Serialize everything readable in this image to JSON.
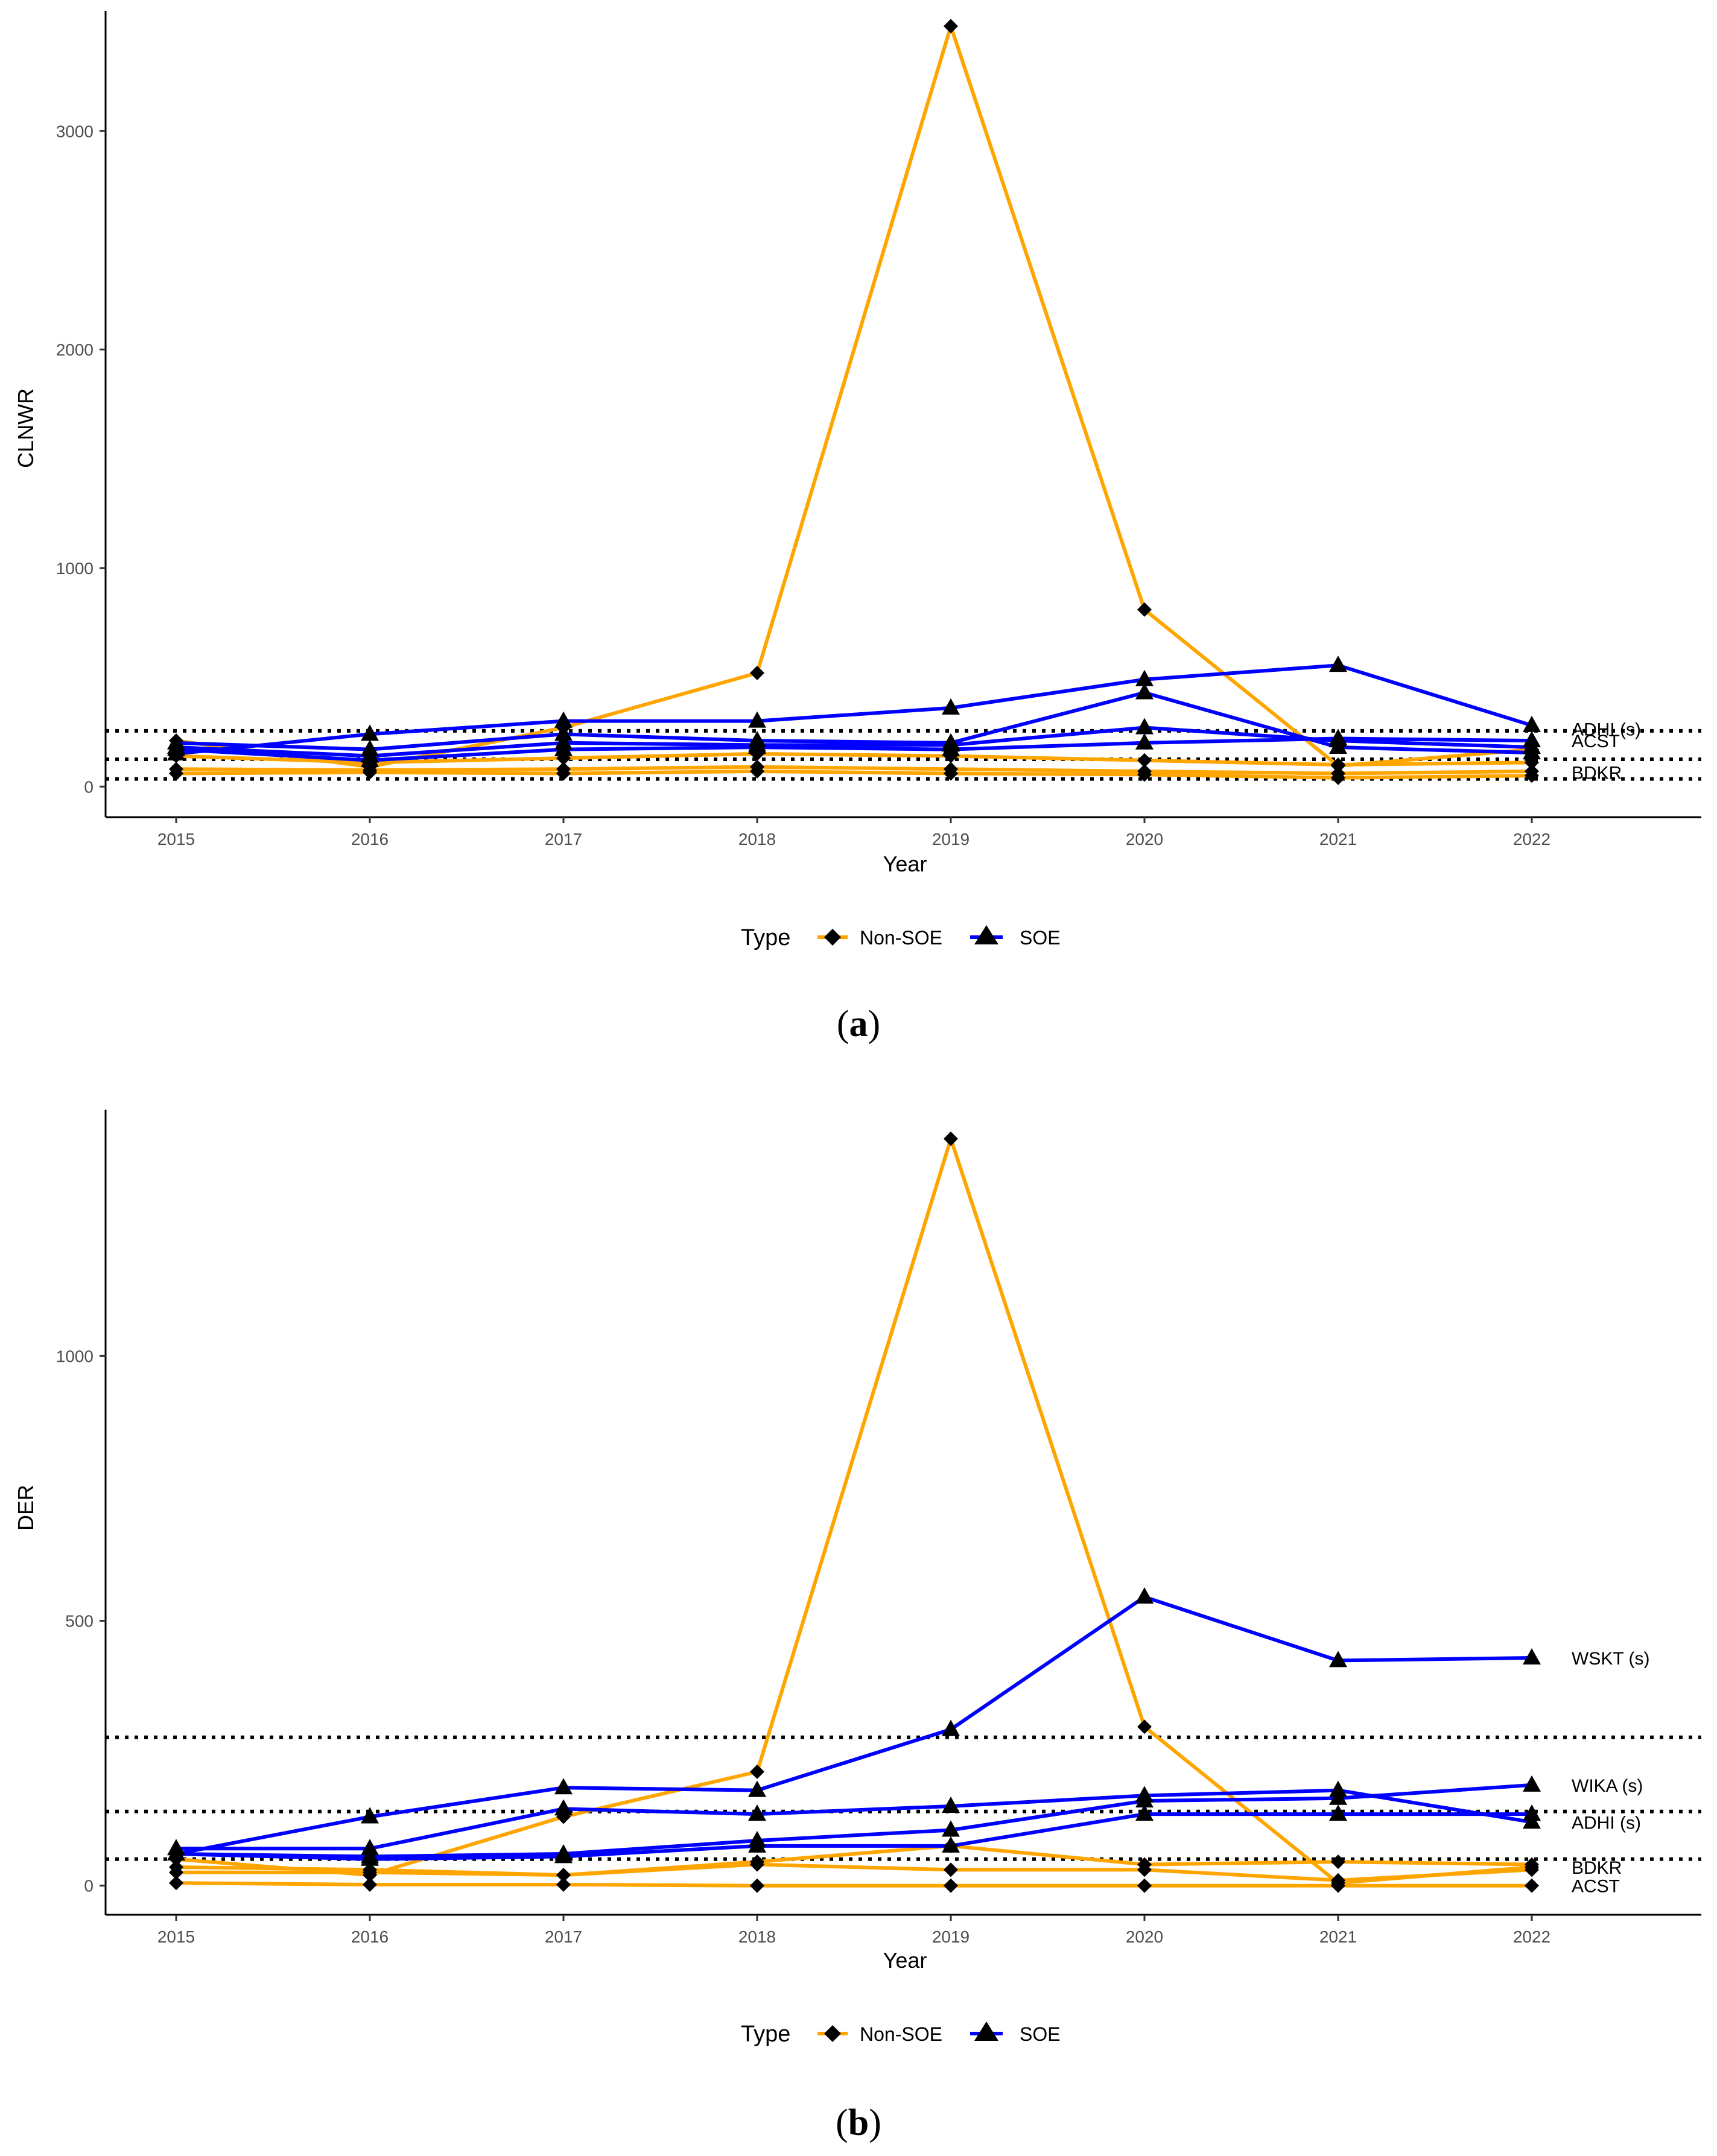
{
  "chart_data": [
    {
      "panel_label": "a",
      "type": "line",
      "xlabel": "Year",
      "ylabel": "CLNWR",
      "x": [
        2015,
        2016,
        2017,
        2018,
        2019,
        2020,
        2021,
        2022
      ],
      "x_tick_labels": [
        "2015",
        "2016",
        "2017",
        "2018",
        "2019",
        "2020",
        "2021",
        "2022"
      ],
      "ylim": [
        -140,
        3550
      ],
      "y_ticks": [
        0,
        1000,
        2000,
        3000
      ],
      "y_tick_labels": [
        "0",
        "1000",
        "2000",
        "3000"
      ],
      "reference_lines": [
        255,
        125,
        35
      ],
      "series": [
        {
          "name": "Non-SOE",
          "type": "Non-SOE",
          "values": [
            210,
            90,
            270,
            520,
            3480,
            810,
            95,
            170
          ]
        },
        {
          "name": "Non-SOE",
          "type": "Non-SOE",
          "values": [
            140,
            110,
            130,
            150,
            140,
            120,
            100,
            110
          ]
        },
        {
          "name": "Non-SOE",
          "type": "Non-SOE",
          "values": [
            80,
            75,
            80,
            90,
            80,
            70,
            60,
            70
          ]
        },
        {
          "name": "Non-SOE",
          "type": "Non-SOE",
          "values": [
            60,
            65,
            60,
            70,
            60,
            55,
            40,
            50
          ]
        },
        {
          "name": "SOE",
          "type": "SOE",
          "values": [
            150,
            240,
            300,
            300,
            360,
            490,
            555,
            280
          ]
        },
        {
          "name": "SOE",
          "type": "SOE",
          "values": [
            200,
            170,
            240,
            210,
            200,
            430,
            180,
            155
          ]
        },
        {
          "name": "SOE",
          "type": "SOE",
          "values": [
            180,
            140,
            200,
            190,
            190,
            270,
            210,
            180
          ]
        },
        {
          "name": "SOE",
          "type": "SOE",
          "values": [
            170,
            120,
            170,
            180,
            170,
            200,
            220,
            210
          ]
        }
      ],
      "annotations": [
        {
          "text": "ADHI (s)",
          "y": 265
        },
        {
          "text": "ACST",
          "y": 210
        },
        {
          "text": "BDKR",
          "y": 65
        }
      ],
      "legend": {
        "title": "Type",
        "items": [
          "Non-SOE",
          "SOE"
        ],
        "position": "bottom"
      }
    },
    {
      "panel_label": "b",
      "type": "line",
      "xlabel": "Year",
      "ylabel": "DER",
      "x": [
        2015,
        2016,
        2017,
        2018,
        2019,
        2020,
        2021,
        2022
      ],
      "x_tick_labels": [
        "2015",
        "2016",
        "2017",
        "2018",
        "2019",
        "2020",
        "2021",
        "2022"
      ],
      "ylim": [
        -55,
        1465
      ],
      "y_ticks": [
        0,
        500,
        1000
      ],
      "y_tick_labels": [
        "0",
        "500",
        "1000"
      ],
      "reference_lines": [
        280,
        140,
        50
      ],
      "series": [
        {
          "name": "Non-SOE",
          "type": "Non-SOE",
          "values": [
            50,
            20,
            130,
            215,
            1410,
            300,
            5,
            35
          ]
        },
        {
          "name": "Non-SOE",
          "type": "Non-SOE",
          "values": [
            35,
            30,
            20,
            45,
            75,
            40,
            45,
            40
          ]
        },
        {
          "name": "Non-SOE",
          "type": "Non-SOE",
          "values": [
            25,
            25,
            20,
            40,
            30,
            30,
            10,
            30
          ]
        },
        {
          "name": "Non-SOE",
          "type": "Non-SOE",
          "values": [
            5,
            2,
            2,
            0,
            0,
            0,
            0,
            0
          ]
        },
        {
          "name": "SOE",
          "type": "SOE",
          "values": [
            60,
            130,
            185,
            180,
            295,
            545,
            425,
            430
          ]
        },
        {
          "name": "SOE",
          "type": "SOE",
          "values": [
            70,
            70,
            145,
            135,
            150,
            170,
            180,
            120
          ]
        },
        {
          "name": "SOE",
          "type": "SOE",
          "values": [
            60,
            55,
            60,
            85,
            105,
            160,
            165,
            190
          ]
        },
        {
          "name": "SOE",
          "type": "SOE",
          "values": [
            60,
            50,
            55,
            75,
            75,
            135,
            135,
            135
          ]
        }
      ],
      "annotations": [
        {
          "text": "WSKT (s)",
          "y": 430
        },
        {
          "text": "WIKA (s)",
          "y": 190
        },
        {
          "text": "ADHI (s)",
          "y": 120
        },
        {
          "text": "BDKR",
          "y": 35
        },
        {
          "text": "ACST",
          "y": 0
        }
      ],
      "legend": {
        "title": "Type",
        "items": [
          "Non-SOE",
          "SOE"
        ],
        "position": "bottom"
      }
    }
  ],
  "colors": {
    "non_soe": "#ffa500",
    "soe": "#0000ff",
    "marker": "#000000",
    "axis": "#000000",
    "tick_text": "#4d4d4d"
  }
}
